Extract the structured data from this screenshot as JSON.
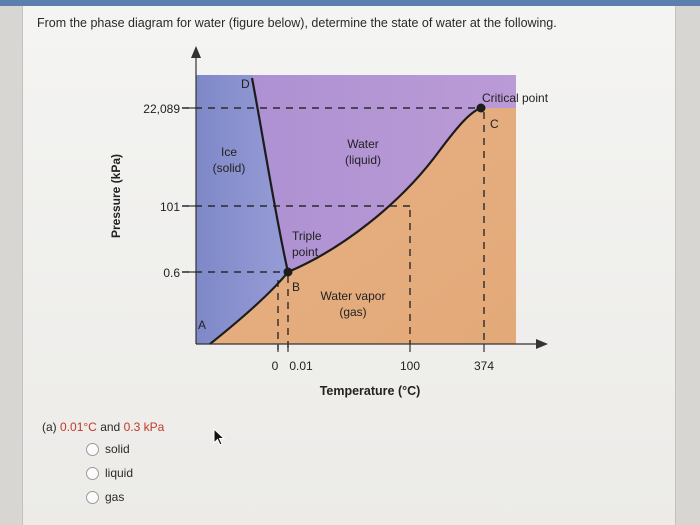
{
  "question": {
    "text": "From the phase diagram for water (figure below), determine the state of water at the following."
  },
  "diagram": {
    "y_axis_label": "Pressure (kPa)",
    "x_axis_label": "Temperature (°C)",
    "y_ticks": [
      "22,089",
      "101",
      "0.6"
    ],
    "x_ticks": [
      "0",
      "0.01",
      "100",
      "374"
    ],
    "regions": {
      "ice": [
        "Ice",
        "(solid)"
      ],
      "water": [
        "Water",
        "(liquid)"
      ],
      "vapor": [
        "Water vapor",
        "(gas)"
      ]
    },
    "points": {
      "A": "A",
      "B": "B",
      "C": "C",
      "D": "D"
    },
    "triple_point": [
      "Triple",
      "point"
    ],
    "critical_point": "Critical point",
    "colors": {
      "solid": "#8c93cf",
      "liquid": "#b595d4",
      "gas": "#e8b48a"
    }
  },
  "part_a": {
    "prefix": "(a)",
    "temp": "0.01°C",
    "and": "and",
    "pressure": "0.3 kPa",
    "options": [
      "solid",
      "liquid",
      "gas"
    ]
  }
}
